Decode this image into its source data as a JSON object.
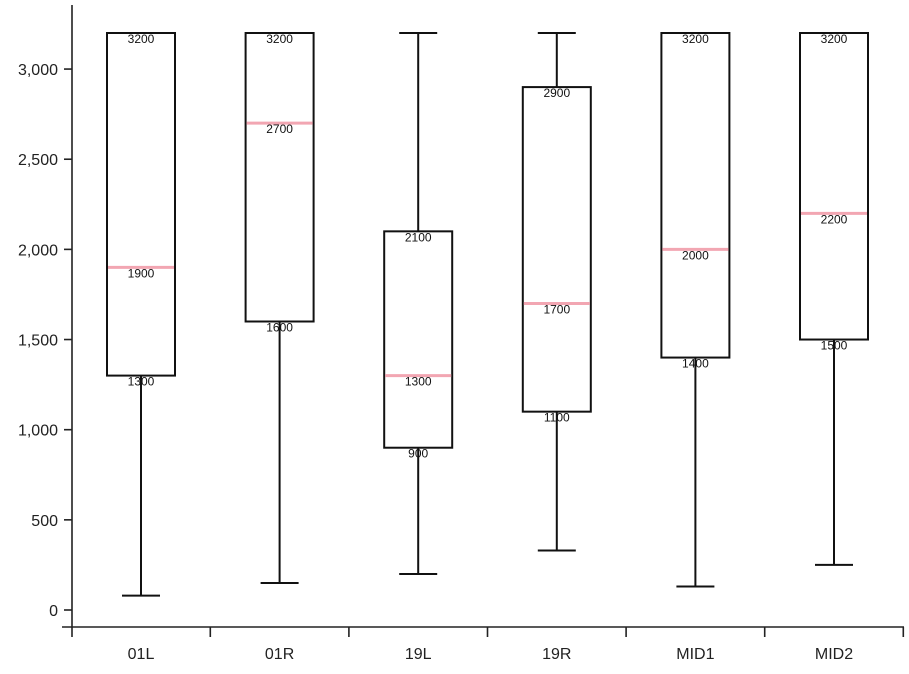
{
  "chart_data": {
    "type": "boxplot",
    "title": "",
    "xlabel": "",
    "ylabel": "",
    "categories": [
      "01L",
      "01R",
      "19L",
      "19R",
      "MID1",
      "MID2"
    ],
    "ylim": [
      0,
      3200
    ],
    "yticks": [
      0,
      500,
      1000,
      1500,
      2000,
      2500,
      3000
    ],
    "ytick_labels": [
      "0",
      "500",
      "1,000",
      "1,500",
      "2,000",
      "2,500",
      "3,000"
    ],
    "grid": false,
    "colors": {
      "box": "#111111",
      "median": "#f2a6b2",
      "axis": "#222222"
    },
    "boxes": [
      {
        "category": "01L",
        "min": 80,
        "q1": 1300,
        "median": 1900,
        "q3": 3200,
        "max": 3200
      },
      {
        "category": "01R",
        "min": 150,
        "q1": 1600,
        "median": 2700,
        "q3": 3200,
        "max": 3200
      },
      {
        "category": "19L",
        "min": 200,
        "q1": 900,
        "median": 1300,
        "q3": 2100,
        "max": 3200
      },
      {
        "category": "19R",
        "min": 330,
        "q1": 1100,
        "median": 1700,
        "q3": 2900,
        "max": 3200
      },
      {
        "category": "MID1",
        "min": 130,
        "q1": 1400,
        "median": 2000,
        "q3": 3200,
        "max": 3200
      },
      {
        "category": "MID2",
        "min": 250,
        "q1": 1500,
        "median": 2200,
        "q3": 3200,
        "max": 3200
      }
    ]
  }
}
